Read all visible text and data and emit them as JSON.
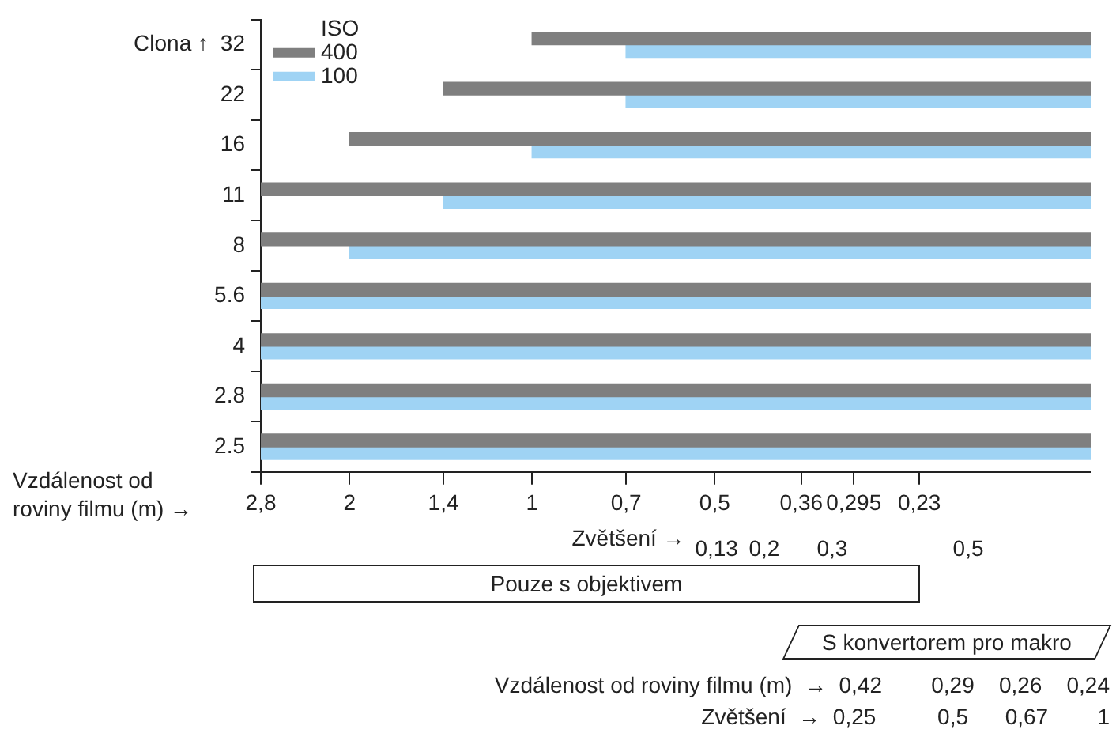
{
  "chart_data": {
    "type": "bar",
    "orientation": "horizontal",
    "ylabel": "Clona ↑",
    "xlabel": "Vzdálenost od roviny filmu (m) →",
    "x2label": "Zvětšení →",
    "legend_title": "ISO",
    "legend": "top left",
    "categories": [
      "32",
      "22",
      "16",
      "11",
      "8",
      "5.6",
      "4",
      "2.8",
      "2.5"
    ],
    "log": "x",
    "xlim": [
      2.8,
      0.12
    ],
    "xticks": [
      {
        "value": 2.8,
        "label": "2,8"
      },
      {
        "value": 2,
        "label": "2"
      },
      {
        "value": 1.4,
        "label": "1,4"
      },
      {
        "value": 1,
        "label": "1"
      },
      {
        "value": 0.7,
        "label": "0,7"
      },
      {
        "value": 0.5,
        "label": "0,5"
      },
      {
        "value": 0.36,
        "label": "0,36"
      },
      {
        "value": 0.295,
        "label": "0,295"
      },
      {
        "value": 0.23,
        "label": "0,23"
      }
    ],
    "x2lim": [
      -0.54,
      0.68
    ],
    "x2ticks": [
      {
        "value": 0.13,
        "label": "0,13"
      },
      {
        "value": 0.2,
        "label": "0,2"
      },
      {
        "value": 0.3,
        "label": "0,3"
      },
      {
        "value": 0.5,
        "label": "0,5"
      }
    ],
    "series": [
      {
        "name": "400",
        "color": "#7f7f7f",
        "base": [
          0.12,
          0.12,
          0.12,
          0.12,
          0.12,
          0.12,
          0.12,
          0.12,
          0.12
        ],
        "values": [
          0.88,
          1.28,
          1.88,
          2.68,
          2.68,
          2.68,
          2.68,
          2.68,
          2.68
        ]
      },
      {
        "name": "100",
        "color": "#9fd3f4",
        "base": [
          0.12,
          0.12,
          0.12,
          0.12,
          0.12,
          0.12,
          0.12,
          0.12,
          0.12
        ],
        "values": [
          0.58,
          0.58,
          0.88,
          1.28,
          1.88,
          2.68,
          2.68,
          2.68,
          2.68
        ]
      }
    ],
    "annotations": [
      "Pouze s objektivem",
      "S konvertorem pro makro",
      "Vzdálenost od roviny filmu (m)  →  0,42        0,29    0,26    0,24",
      "Zvětšení  →  0,25          0,5      0,67        1"
    ]
  }
}
